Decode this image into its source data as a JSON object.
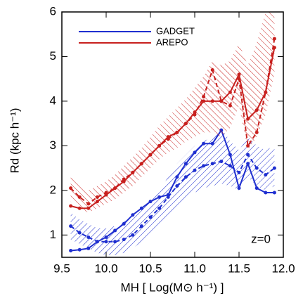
{
  "chart_data": {
    "type": "line",
    "xlabel": "MH [ Log(M⊙ h⁻¹) ]",
    "ylabel": "Rd (kpc h⁻¹)",
    "annotation": "z=0",
    "xlim": [
      9.5,
      12.0
    ],
    "ylim": [
      0.5,
      6
    ],
    "xticks": [
      9.5,
      {
        "value": 10,
        "label": "10.0"
      },
      10.5,
      {
        "value": 11,
        "label": "11.0"
      },
      11.5,
      {
        "value": 12,
        "label": "12.0"
      }
    ],
    "yticks": [
      1,
      2,
      3,
      4,
      5,
      6
    ],
    "x": [
      9.6,
      9.7,
      9.8,
      9.9,
      10.0,
      10.1,
      10.2,
      10.3,
      10.4,
      10.5,
      10.6,
      10.7,
      10.8,
      10.9,
      11.0,
      11.1,
      11.2,
      11.3,
      11.4,
      11.5,
      11.6,
      11.7,
      11.8,
      11.9
    ],
    "series": [
      {
        "name": "GADGET",
        "color": "#1f2fd0",
        "values": [
          0.65,
          0.67,
          0.7,
          0.85,
          0.95,
          1.1,
          1.25,
          1.45,
          1.6,
          1.75,
          1.85,
          1.9,
          2.3,
          2.6,
          2.85,
          3.05,
          3.05,
          3.35,
          2.8,
          2.05,
          2.6,
          2.05,
          1.95,
          1.95
        ],
        "dashed": [
          1.2,
          1.05,
          0.95,
          0.85,
          0.85,
          0.85,
          0.9,
          1.0,
          1.2,
          1.4,
          1.6,
          1.85,
          2.1,
          2.3,
          2.45,
          2.55,
          2.6,
          2.65,
          2.55,
          2.4,
          2.8,
          2.5,
          2.35,
          2.5
        ],
        "band_low": [
          0.9,
          0.8,
          0.7,
          0.6,
          0.55,
          0.55,
          0.6,
          0.7,
          0.85,
          1.0,
          1.2,
          1.4,
          1.6,
          1.8,
          1.95,
          2.05,
          2.1,
          2.15,
          2.1,
          2.0,
          2.3,
          2.1,
          2.0,
          2.1
        ],
        "band_high": [
          1.5,
          1.35,
          1.25,
          1.15,
          1.15,
          1.2,
          1.3,
          1.4,
          1.6,
          1.8,
          2.0,
          2.3,
          2.6,
          2.8,
          3.0,
          3.1,
          3.2,
          3.4,
          3.1,
          2.9,
          3.2,
          3.0,
          2.9,
          3.0
        ]
      },
      {
        "name": "AREPO",
        "color": "#c8201e",
        "values": [
          1.65,
          1.6,
          1.6,
          1.75,
          1.9,
          2.05,
          2.2,
          2.4,
          2.6,
          2.8,
          3.0,
          3.2,
          3.3,
          3.5,
          3.75,
          4.0,
          4.0,
          4.0,
          4.2,
          4.6,
          3.6,
          3.8,
          4.2,
          5.2
        ],
        "dashed": [
          2.05,
          1.85,
          1.7,
          1.85,
          1.95,
          2.05,
          2.25,
          2.4,
          2.6,
          2.8,
          3.0,
          3.15,
          3.3,
          3.5,
          3.7,
          4.1,
          4.7,
          4.0,
          3.9,
          4.5,
          3.0,
          3.3,
          4.2,
          5.4
        ],
        "band_low": [
          1.75,
          1.6,
          1.5,
          1.6,
          1.7,
          1.8,
          1.95,
          2.1,
          2.3,
          2.5,
          2.7,
          2.85,
          2.95,
          3.1,
          3.2,
          3.3,
          3.3,
          3.2,
          3.4,
          3.9,
          2.9,
          3.2,
          3.7,
          4.6
        ],
        "band_high": [
          2.3,
          2.1,
          2.0,
          2.1,
          2.2,
          2.35,
          2.55,
          2.75,
          2.95,
          3.2,
          3.45,
          3.65,
          3.85,
          4.05,
          4.3,
          4.55,
          4.9,
          4.8,
          4.9,
          5.3,
          4.8,
          5.3,
          6.0,
          6.0
        ]
      }
    ]
  }
}
